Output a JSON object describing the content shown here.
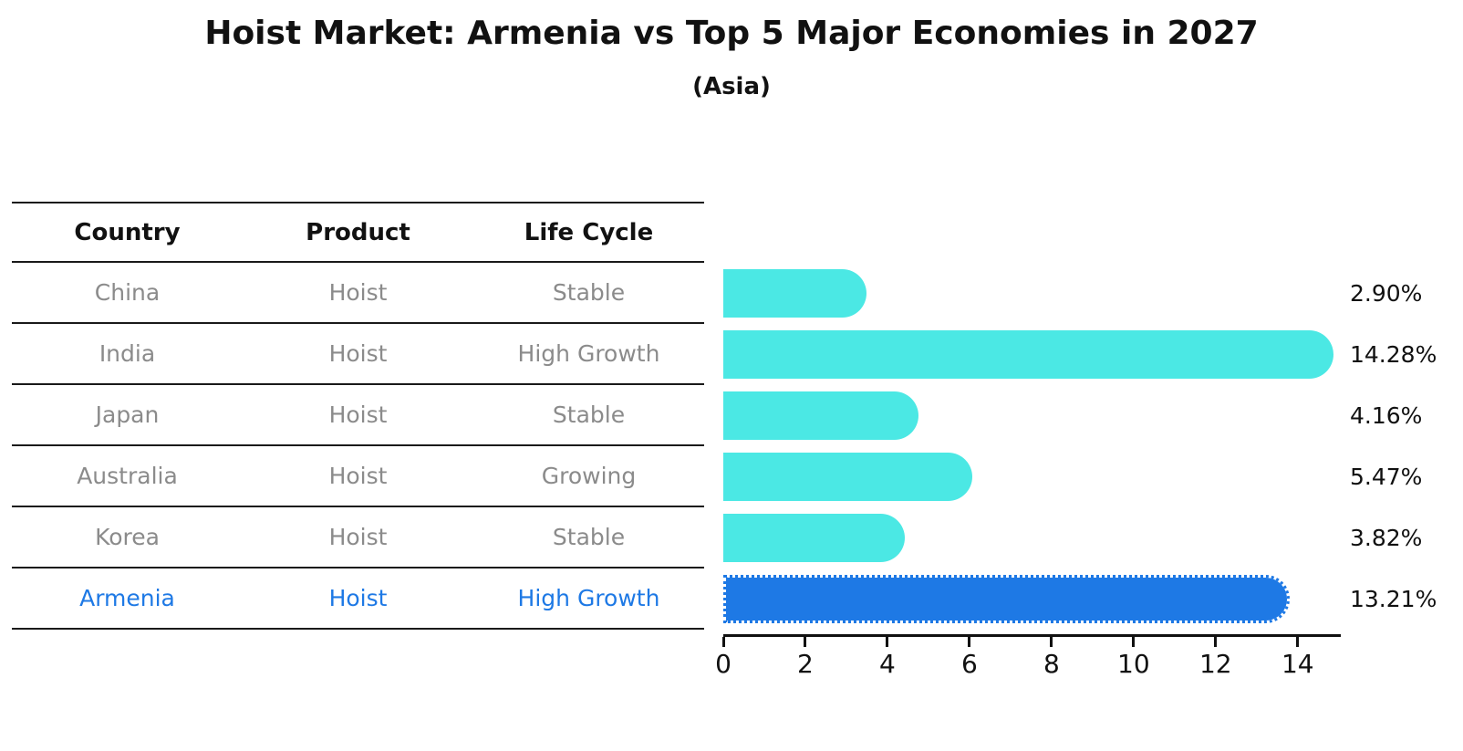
{
  "title": "Hoist Market: Armenia vs Top 5 Major Economies in 2027",
  "subtitle": "(Asia)",
  "table": {
    "headers": [
      "Country",
      "Product",
      "Life Cycle"
    ],
    "rows": [
      {
        "country": "China",
        "product": "Hoist",
        "life_cycle": "Stable",
        "highlight": false
      },
      {
        "country": "India",
        "product": "Hoist",
        "life_cycle": "High Growth",
        "highlight": false
      },
      {
        "country": "Japan",
        "product": "Hoist",
        "life_cycle": "Stable",
        "highlight": false
      },
      {
        "country": "Australia",
        "product": "Hoist",
        "life_cycle": "Growing",
        "highlight": false
      },
      {
        "country": "Korea",
        "product": "Hoist",
        "life_cycle": "Stable",
        "highlight": false
      },
      {
        "country": "Armenia",
        "product": "Hoist",
        "life_cycle": "High Growth",
        "highlight": true
      }
    ]
  },
  "chart_data": {
    "type": "bar",
    "orientation": "horizontal",
    "title": "Hoist Market: Armenia vs Top 5 Major Economies in 2027",
    "subtitle": "(Asia)",
    "categories": [
      "China",
      "India",
      "Japan",
      "Australia",
      "Korea",
      "Armenia"
    ],
    "values": [
      2.9,
      14.28,
      4.16,
      5.47,
      3.82,
      13.21
    ],
    "value_labels": [
      "2.90%",
      "14.28%",
      "4.16%",
      "5.47%",
      "3.82%",
      "13.21%"
    ],
    "x_ticks": [
      0,
      2,
      4,
      6,
      8,
      10,
      12,
      14
    ],
    "xlim": [
      0,
      15.05
    ],
    "grid": false,
    "legend": false,
    "bar_color": "#4BE8E4",
    "highlight_color": "#1E79E5",
    "highlight_index": 5
  },
  "colors": {
    "background": "#FFFFFF",
    "bar": "#4BE8E4",
    "highlight": "#1E79E5",
    "table_text": "#8B8B8B",
    "heading_text": "#111111",
    "line": "#1A1A1A"
  }
}
